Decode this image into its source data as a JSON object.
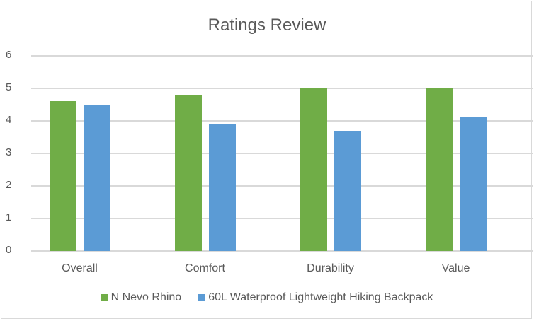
{
  "chart_data": {
    "type": "bar",
    "title": "Ratings Review",
    "categories": [
      "Overall",
      "Comfort",
      "Durability",
      "Value"
    ],
    "series": [
      {
        "name": "N Nevo Rhino",
        "color": "#70ad47",
        "values": [
          4.6,
          4.8,
          5.0,
          5.0
        ]
      },
      {
        "name": "60L Waterproof Lightweight Hiking Backpack",
        "color": "#5b9bd5",
        "values": [
          4.5,
          3.9,
          3.7,
          4.1
        ]
      }
    ],
    "xlabel": "",
    "ylabel": "",
    "ylim": [
      0,
      6
    ],
    "yticks": [
      "0",
      "1",
      "2",
      "3",
      "4",
      "5",
      "6"
    ],
    "grid": true,
    "legend_position": "bottom"
  }
}
